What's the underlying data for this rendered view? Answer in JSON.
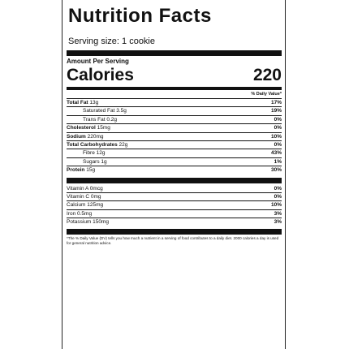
{
  "label": {
    "title": "Nutrition Facts",
    "serving": "Serving size: 1 cookie",
    "amount_per_serving": "Amount Per Serving",
    "calories_label": "Calories",
    "calories_value": "220",
    "dv_header": "% Daily Value*",
    "nutrients": [
      {
        "name": "Total Fat",
        "amount": "13g",
        "pct": "17%"
      },
      {
        "name": "Saturated Fat",
        "amount": "3.5g",
        "pct": "19%"
      },
      {
        "name": "Trans Fat",
        "amount": "0.2g",
        "pct": "0%"
      },
      {
        "name": "Cholesterol",
        "amount": "15mg",
        "pct": "0%"
      },
      {
        "name": "Sodium",
        "amount": "220mg",
        "pct": "10%"
      },
      {
        "name": "Total Carbohydrates",
        "amount": "22g",
        "pct": "0%"
      },
      {
        "name": "Fibre",
        "amount": "12g",
        "pct": "43%"
      },
      {
        "name": "Sugars",
        "amount": "1g",
        "pct": "1%"
      },
      {
        "name": "Protein",
        "amount": "15g",
        "pct": "30%"
      }
    ],
    "vitamins": [
      {
        "text": "Vitamin A 0mcg",
        "pct": "0%"
      },
      {
        "text": "Vitamin C 0mg",
        "pct": "0%"
      },
      {
        "text": "Calcium 125mg",
        "pct": "10%"
      },
      {
        "text": "Iron 0.5mg",
        "pct": "3%"
      },
      {
        "text": "Potassium 150mg",
        "pct": "3%"
      }
    ],
    "footnote": "*The % Daily Value (DV) tells you how much a nutrient in a serving of food contributes to a daily diet. 2000 calories a day is used for general nutrition advice."
  }
}
